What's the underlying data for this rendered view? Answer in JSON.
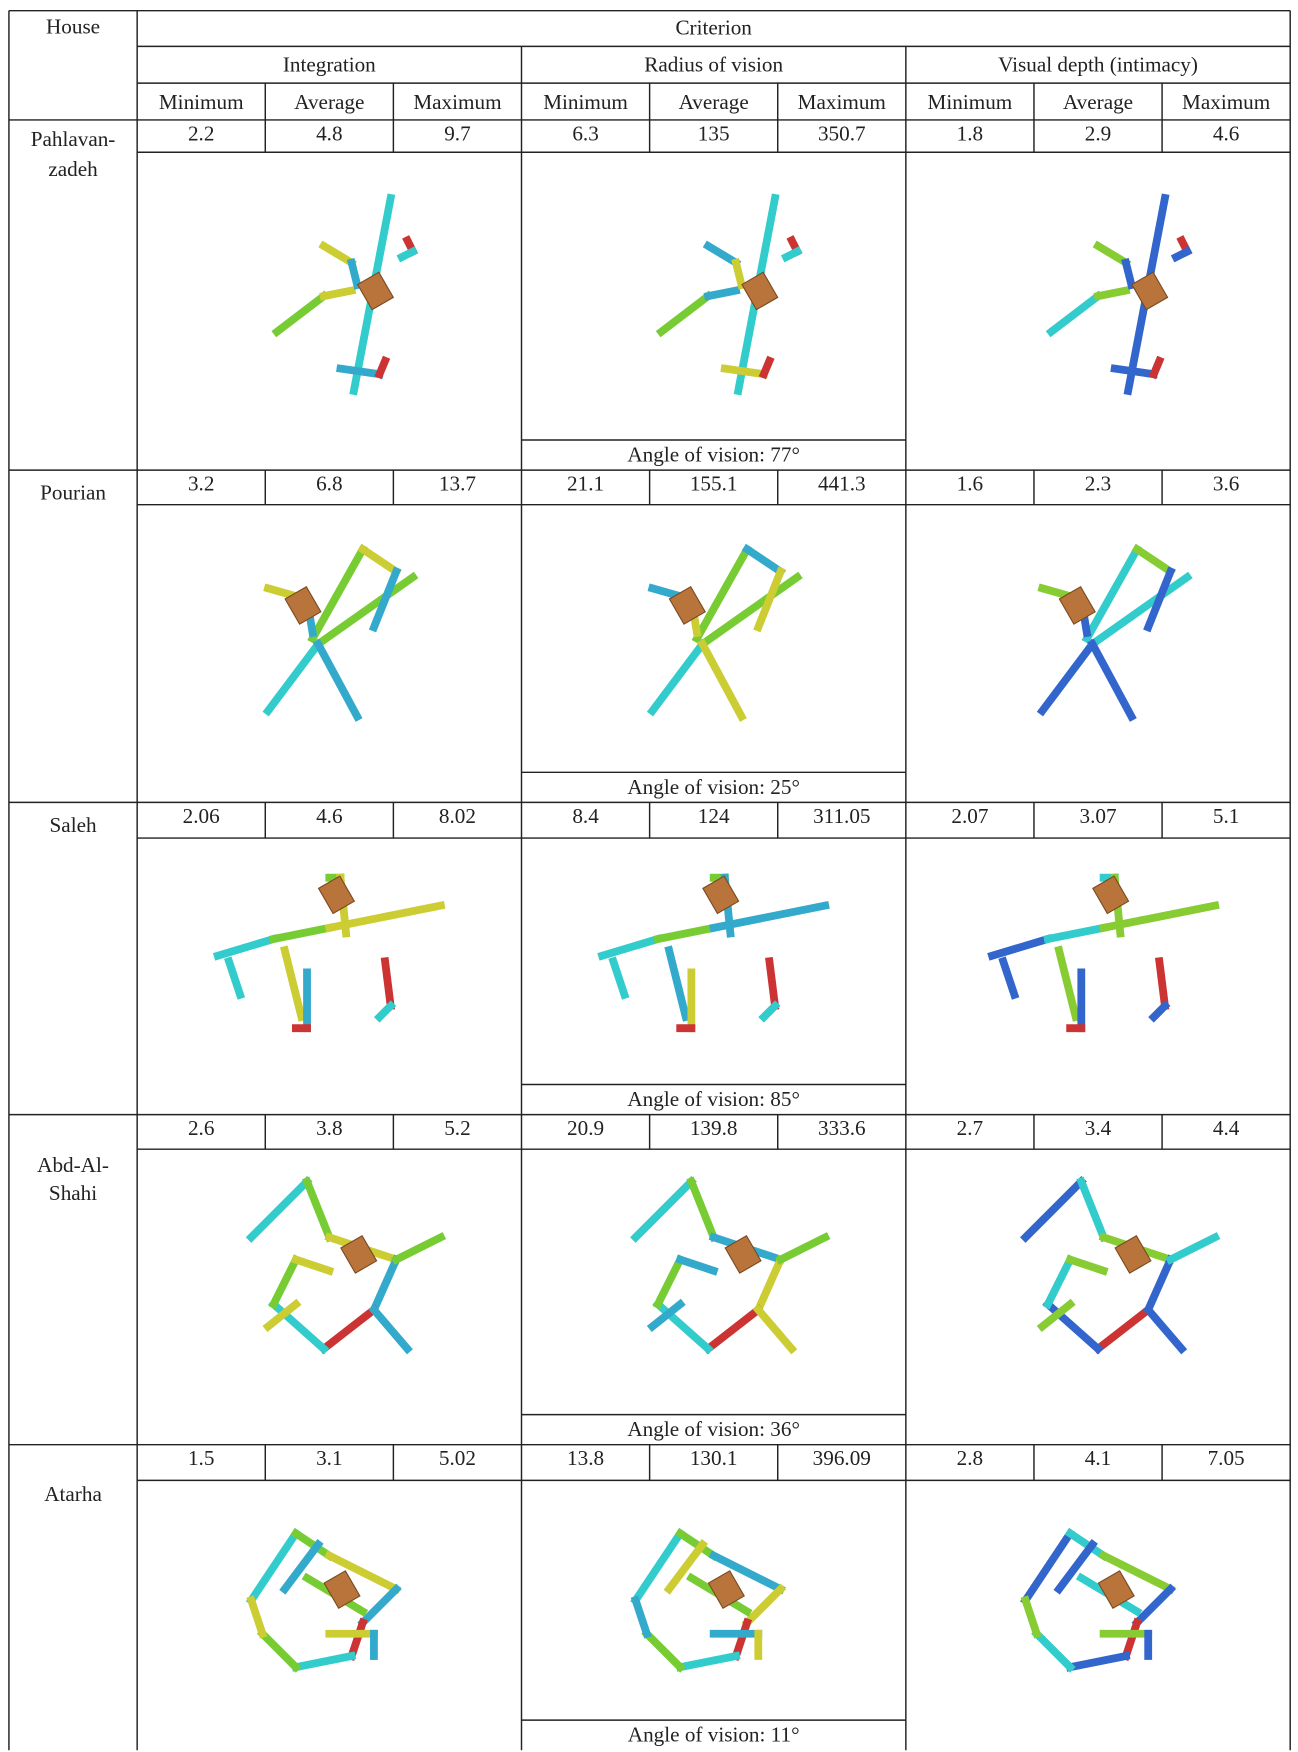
{
  "header": {
    "house": "House",
    "criterion": "Criterion",
    "groups": [
      "Integration",
      "Radius of vision",
      "Visual depth (intimacy)"
    ],
    "subheaders": [
      "Minimum",
      "Average",
      "Maximum"
    ]
  },
  "rows": [
    {
      "house": [
        "Pahlavan-",
        "zadeh"
      ],
      "values": [
        2.2,
        4.8,
        9.7,
        6.3,
        135,
        350.7,
        1.8,
        2.9,
        4.6
      ],
      "angle_of_vision": "Angle of vision: 77°"
    },
    {
      "house": [
        "Pourian"
      ],
      "values": [
        3.2,
        6.8,
        13.7,
        21.1,
        155.1,
        441.3,
        1.6,
        2.3,
        3.6
      ],
      "angle_of_vision": "Angle of vision: 25°"
    },
    {
      "house": [
        "Saleh"
      ],
      "values": [
        2.06,
        4.6,
        8.02,
        8.4,
        124,
        311.05,
        2.07,
        3.07,
        5.1
      ],
      "angle_of_vision": "Angle of vision: 85°"
    },
    {
      "house": [
        "Abd-Al-",
        "Shahi"
      ],
      "values": [
        2.6,
        3.8,
        5.2,
        20.9,
        139.8,
        333.6,
        2.7,
        3.4,
        4.4
      ],
      "angle_of_vision": "Angle of vision: 36°"
    },
    {
      "house": [
        "Atarha"
      ],
      "values": [
        1.5,
        3.1,
        5.02,
        13.8,
        130.1,
        396.09,
        2.8,
        4.1,
        7.05
      ],
      "angle_of_vision": "Angle of vision: 11°"
    }
  ]
}
